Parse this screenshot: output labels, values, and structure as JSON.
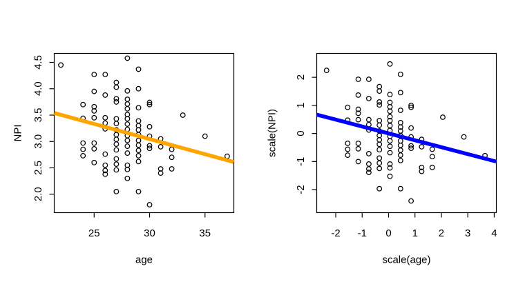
{
  "figure": {
    "background_color": "#ffffff",
    "description": "Two R base-graphics scatter plots side by side: raw NPI vs age with orange regression line, and standardized scale(NPI) vs scale(age) with blue regression line",
    "point_marker": "open-circle",
    "marker_color": "#000000"
  },
  "chart_data": [
    {
      "type": "scatter",
      "title": "",
      "xlabel": "age",
      "ylabel": "NPI",
      "xlim": [
        21.4,
        37.6
      ],
      "ylim": [
        1.65,
        4.67
      ],
      "xticks": [
        25,
        30,
        35
      ],
      "xtick_labels": [
        "25",
        "30",
        "35"
      ],
      "yticks": [
        2.0,
        2.5,
        3.0,
        3.5,
        4.0,
        4.5
      ],
      "ytick_labels": [
        "2.0",
        "2.5",
        "3.0",
        "3.5",
        "4.0",
        "4.5"
      ],
      "grid": "off",
      "legend": "none",
      "regression_line": {
        "color": "#FFA500",
        "x1": 21.4,
        "y1": 3.54,
        "x2": 37.6,
        "y2": 2.61
      },
      "points": [
        [
          22,
          4.45
        ],
        [
          24,
          3.7
        ],
        [
          24,
          3.44
        ],
        [
          24,
          2.97
        ],
        [
          24,
          2.85
        ],
        [
          24,
          2.73
        ],
        [
          25,
          4.27
        ],
        [
          25,
          3.95
        ],
        [
          25,
          3.66
        ],
        [
          25,
          3.58
        ],
        [
          25,
          3.45
        ],
        [
          25,
          2.97
        ],
        [
          25,
          2.86
        ],
        [
          25,
          2.6
        ],
        [
          26,
          4.27
        ],
        [
          26,
          3.88
        ],
        [
          26,
          3.45
        ],
        [
          26,
          3.35
        ],
        [
          26,
          3.24
        ],
        [
          26,
          2.76
        ],
        [
          26,
          2.55
        ],
        [
          26,
          2.45
        ],
        [
          26,
          2.38
        ],
        [
          27,
          4.12
        ],
        [
          27,
          4.03
        ],
        [
          27,
          3.81
        ],
        [
          27,
          3.75
        ],
        [
          27,
          3.43
        ],
        [
          27,
          3.34
        ],
        [
          27,
          3.22
        ],
        [
          27,
          3.13
        ],
        [
          27,
          3.04
        ],
        [
          27,
          2.95
        ],
        [
          27,
          2.84
        ],
        [
          27,
          2.67
        ],
        [
          27,
          2.57
        ],
        [
          27,
          2.46
        ],
        [
          27,
          2.05
        ],
        [
          28,
          4.58
        ],
        [
          28,
          3.96
        ],
        [
          28,
          3.8
        ],
        [
          28,
          3.71
        ],
        [
          28,
          3.62
        ],
        [
          28,
          3.51
        ],
        [
          28,
          3.43
        ],
        [
          28,
          3.33
        ],
        [
          28,
          3.23
        ],
        [
          28,
          3.11
        ],
        [
          28,
          3.02
        ],
        [
          28,
          2.91
        ],
        [
          28,
          2.78
        ],
        [
          28,
          2.55
        ],
        [
          28,
          2.47
        ],
        [
          28,
          2.3
        ],
        [
          29,
          4.37
        ],
        [
          29,
          4.0
        ],
        [
          29,
          3.64
        ],
        [
          29,
          3.39
        ],
        [
          29,
          3.3
        ],
        [
          29,
          3.22
        ],
        [
          29,
          3.13
        ],
        [
          29,
          3.02
        ],
        [
          29,
          2.93
        ],
        [
          29,
          2.83
        ],
        [
          29,
          2.73
        ],
        [
          29,
          2.62
        ],
        [
          29,
          2.05
        ],
        [
          30,
          3.74
        ],
        [
          30,
          3.7
        ],
        [
          30,
          3.28
        ],
        [
          30,
          3.1
        ],
        [
          30,
          2.92
        ],
        [
          30,
          2.87
        ],
        [
          30,
          1.8
        ],
        [
          31,
          3.05
        ],
        [
          31,
          2.9
        ],
        [
          31,
          2.48
        ],
        [
          31,
          2.4
        ],
        [
          32,
          2.85
        ],
        [
          32,
          2.7
        ],
        [
          32,
          2.48
        ],
        [
          33,
          3.5
        ],
        [
          35,
          3.1
        ],
        [
          37,
          2.72
        ]
      ]
    },
    {
      "type": "scatter",
      "title": "",
      "xlabel": "scale(age)",
      "ylabel": "scale(NPI)",
      "xlim": [
        -2.72,
        4.08
      ],
      "ylim": [
        -2.82,
        2.85
      ],
      "xticks": [
        -2,
        -1,
        0,
        1,
        2,
        3,
        4
      ],
      "xtick_labels": [
        "-2",
        "-1",
        "0",
        "1",
        "2",
        "3",
        "4"
      ],
      "yticks": [
        -2,
        -1,
        0,
        1,
        2
      ],
      "ytick_labels": [
        "-2",
        "-1",
        "0",
        "1",
        "2"
      ],
      "grid": "off",
      "legend": "none",
      "regression_line": {
        "color": "#0000FF",
        "x1": -2.72,
        "y1": 0.67,
        "x2": 4.08,
        "y2": -1.0
      },
      "points_source": "same data as first chart, standardized: (value - mean) / sd",
      "standardize": {
        "x_mean": 27.87,
        "x_sd": 2.5,
        "y_mean": 3.17,
        "y_sd": 0.57
      }
    }
  ]
}
